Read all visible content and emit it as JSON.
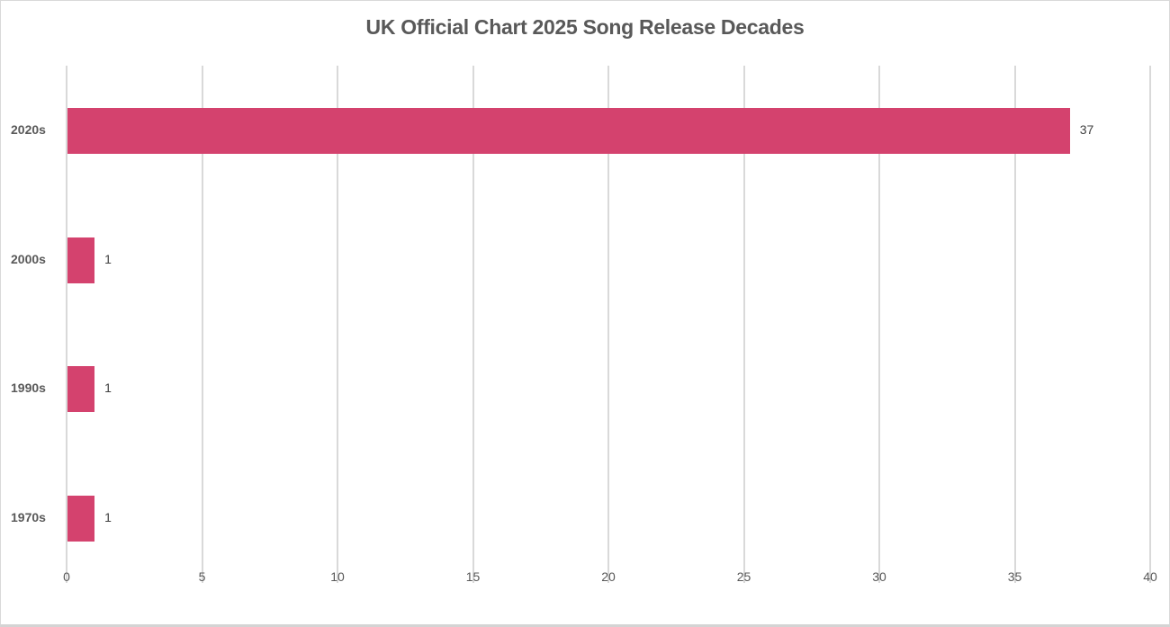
{
  "chart_data": {
    "type": "bar",
    "orientation": "horizontal",
    "title": "UK Official Chart 2025 Song Release Decades",
    "categories": [
      "2020s",
      "2000s",
      "1990s",
      "1970s"
    ],
    "values": [
      37,
      1,
      1,
      1
    ],
    "data_labels": [
      "37",
      "1",
      "1",
      "1"
    ],
    "xlabel": "",
    "ylabel": "",
    "xlim": [
      0,
      40
    ],
    "xticks": [
      "0",
      "5",
      "10",
      "15",
      "20",
      "25",
      "30",
      "35",
      "40"
    ],
    "grid": true,
    "legend": null,
    "bar_color": "#D4426E"
  }
}
